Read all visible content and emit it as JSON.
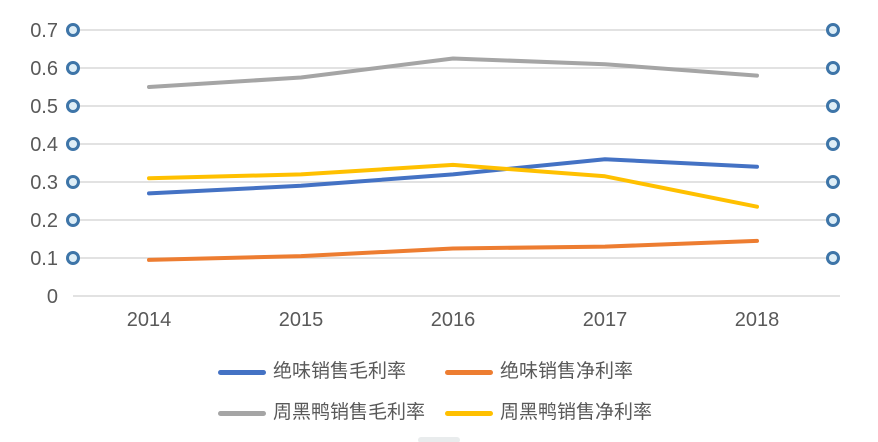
{
  "chart_data": {
    "type": "line",
    "x_categories": [
      "2014",
      "2015",
      "2016",
      "2017",
      "2018"
    ],
    "y_ticks": [
      0,
      0.1,
      0.2,
      0.3,
      0.4,
      0.5,
      0.6,
      0.7
    ],
    "y_tick_labels": [
      "0",
      "0.1",
      "0.2",
      "0.3",
      "0.4",
      "0.5",
      "0.6",
      "0.7"
    ],
    "ylim": [
      0,
      0.7
    ],
    "grid": true,
    "legend_position": "bottom",
    "series": [
      {
        "id": "juewei-gross-margin",
        "name": "绝味销售毛利率",
        "color": "#4472C4",
        "values": [
          0.27,
          0.29,
          0.32,
          0.36,
          0.34
        ]
      },
      {
        "id": "juewei-net-margin",
        "name": "绝味销售净利率",
        "color": "#ED7D31",
        "values": [
          0.095,
          0.105,
          0.125,
          0.13,
          0.145
        ]
      },
      {
        "id": "zhouheiya-gross-margin",
        "name": "周黑鸭销售毛利率",
        "color": "#A5A5A5",
        "values": [
          0.55,
          0.575,
          0.625,
          0.61,
          0.58
        ]
      },
      {
        "id": "zhouheiya-net-margin",
        "name": "周黑鸭销售净利率",
        "color": "#FFC000",
        "values": [
          0.31,
          0.32,
          0.345,
          0.315,
          0.235
        ]
      }
    ],
    "gridline_end_markers": {
      "shape": "circle",
      "stroke": "#3E75A8",
      "fill": "#DEEEF7"
    },
    "colors": {
      "gridline": "#D9D9D9",
      "axis_text": "#595959"
    }
  }
}
